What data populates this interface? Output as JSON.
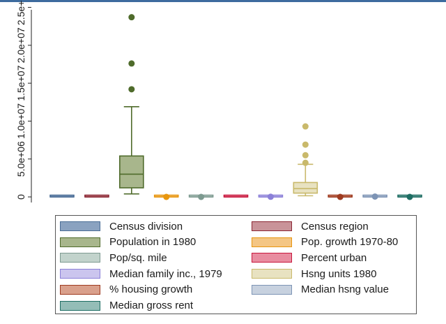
{
  "chart_data": {
    "type": "box",
    "ylabel": "",
    "ylim": [
      0,
      24500000
    ],
    "y_ticks": [
      0,
      5000000,
      10000000,
      15000000,
      20000000,
      25000000
    ],
    "y_tick_labels": [
      "0",
      "5.0e+06",
      "1.0e+07",
      "1.5e+07",
      "2.0e+07",
      "2.5e+07"
    ],
    "series": [
      {
        "name": "Census division",
        "color": "#4a6d96",
        "fill": "#8aa2c0",
        "q1": 0,
        "median": 0,
        "q3": 0,
        "whisker_low": 0,
        "whisker_high": 0,
        "outliers": []
      },
      {
        "name": "Census region",
        "color": "#8b2532",
        "fill": "#c99399",
        "q1": 0,
        "median": 0,
        "q3": 0,
        "whisker_low": 0,
        "whisker_high": 0,
        "outliers": []
      },
      {
        "name": "Population in 1980",
        "color": "#4f6b2b",
        "fill": "#a8b68c",
        "q1": 1200000,
        "median": 3000000,
        "q3": 5400000,
        "whisker_low": 400000,
        "whisker_high": 11900000,
        "outliers": [
          14200000,
          17600000,
          23700000
        ]
      },
      {
        "name": "Pop. growth 1970-80",
        "color": "#e8960e",
        "fill": "#f4c684",
        "q1": 0,
        "median": 0,
        "q3": 0,
        "whisker_low": 0,
        "whisker_high": 0,
        "outliers": [
          10
        ]
      },
      {
        "name": "Pop/sq. mile",
        "color": "#7d9a90",
        "fill": "#c2d3cc",
        "q1": 0,
        "median": 0,
        "q3": 0,
        "whisker_low": 0,
        "whisker_high": 0,
        "outliers": [
          500
        ]
      },
      {
        "name": "Percent urban",
        "color": "#c8173c",
        "fill": "#e88da0",
        "q1": 0,
        "median": 0,
        "q3": 0,
        "whisker_low": 0,
        "whisker_high": 0,
        "outliers": []
      },
      {
        "name": "Median family inc., 1979",
        "color": "#8b80d8",
        "fill": "#cbc5ee",
        "q1": 0,
        "median": 0,
        "q3": 0,
        "whisker_low": 0,
        "whisker_high": 0,
        "outliers": [
          20000
        ]
      },
      {
        "name": "Hsng units 1980",
        "color": "#c9b96b",
        "fill": "#e8e2c1",
        "q1": 500000,
        "median": 1100000,
        "q3": 1900000,
        "whisker_low": 150000,
        "whisker_high": 4300000,
        "outliers": [
          4500000,
          5500000,
          6900000,
          9300000
        ]
      },
      {
        "name": "% housing growth",
        "color": "#9e3b20",
        "fill": "#d9a08c",
        "q1": 0,
        "median": 0,
        "q3": 0,
        "whisker_low": 0,
        "whisker_high": 0,
        "outliers": [
          20
        ]
      },
      {
        "name": "Median hsng value",
        "color": "#7d94b5",
        "fill": "#c7d1df",
        "q1": 0,
        "median": 0,
        "q3": 0,
        "whisker_low": 0,
        "whisker_high": 0,
        "outliers": [
          50000
        ]
      },
      {
        "name": "Median gross rent",
        "color": "#1e6d63",
        "fill": "#94bdb7",
        "q1": 0,
        "median": 0,
        "q3": 0,
        "whisker_low": 0,
        "whisker_high": 0,
        "outliers": [
          300
        ]
      }
    ],
    "legend_position": "bottom",
    "grid": false
  }
}
